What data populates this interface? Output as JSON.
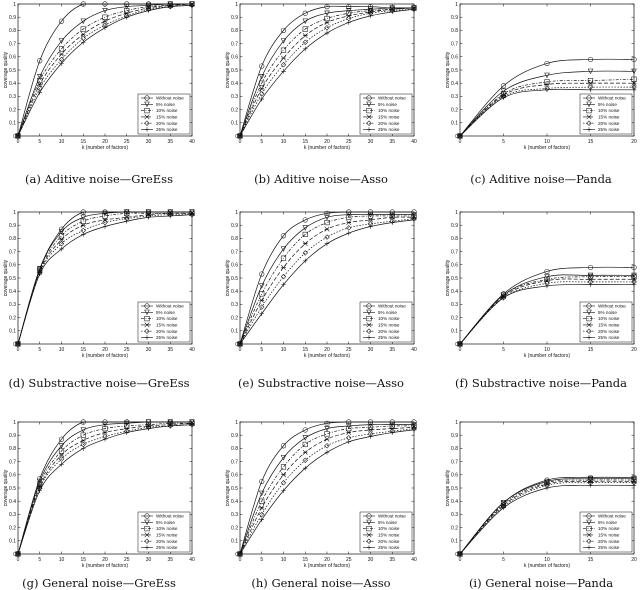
{
  "figure": {
    "legend_entries": [
      "Without noise",
      "5% noise",
      "10% noise",
      "15% noise",
      "20% noise",
      "25% noise"
    ],
    "legend_placement": "bottom-right",
    "xlabel": "k (number of factors)",
    "ylabel": "coverage quality",
    "y_ticks": [
      "0",
      "0.1",
      "0.2",
      "0.3",
      "0.4",
      "0.5",
      "0.6",
      "0.7",
      "0.8",
      "0.9",
      "1"
    ]
  },
  "chart_data": [
    {
      "type": "line",
      "caption": "(a) Aditive noise—GreEss",
      "xlabel": "k (number of factors)",
      "ylabel": "coverage quality",
      "xlim": [
        0,
        40
      ],
      "ylim": [
        0,
        1
      ],
      "x_ticks": [
        "0",
        "5",
        "10",
        "15",
        "20",
        "25",
        "30",
        "35",
        "40"
      ],
      "x": [
        0,
        5,
        10,
        15,
        20,
        25,
        30,
        35,
        40
      ],
      "series": [
        {
          "name": "Without noise",
          "values": [
            0,
            0.57,
            0.87,
            1.0,
            1.0,
            1.0,
            1.0,
            1.0,
            1.0
          ]
        },
        {
          "name": "5% noise",
          "values": [
            0,
            0.45,
            0.72,
            0.87,
            0.95,
            0.98,
            0.99,
            1.0,
            1.0
          ]
        },
        {
          "name": "10% noise",
          "values": [
            0,
            0.42,
            0.66,
            0.81,
            0.9,
            0.95,
            0.98,
            0.99,
            1.0
          ]
        },
        {
          "name": "15% noise",
          "values": [
            0,
            0.39,
            0.62,
            0.77,
            0.87,
            0.93,
            0.97,
            0.99,
            1.0
          ]
        },
        {
          "name": "20% noise",
          "values": [
            0,
            0.36,
            0.58,
            0.74,
            0.84,
            0.91,
            0.96,
            0.98,
            0.99
          ]
        },
        {
          "name": "25% noise",
          "values": [
            0,
            0.33,
            0.55,
            0.71,
            0.82,
            0.9,
            0.95,
            0.98,
            0.99
          ]
        }
      ]
    },
    {
      "type": "line",
      "caption": "(b) Aditive noise—Asso",
      "xlabel": "k (number of factors)",
      "ylabel": "coverage quality",
      "xlim": [
        0,
        40
      ],
      "ylim": [
        0,
        1
      ],
      "x_ticks": [
        "0",
        "5",
        "10",
        "15",
        "20",
        "25",
        "30",
        "35",
        "40"
      ],
      "x": [
        0,
        5,
        10,
        15,
        20,
        25,
        30,
        35,
        40
      ],
      "series": [
        {
          "name": "Without noise",
          "values": [
            0,
            0.53,
            0.8,
            0.93,
            0.98,
            0.98,
            0.98,
            0.97,
            0.97
          ]
        },
        {
          "name": "5% noise",
          "values": [
            0,
            0.45,
            0.72,
            0.87,
            0.93,
            0.95,
            0.96,
            0.97,
            0.97
          ]
        },
        {
          "name": "10% noise",
          "values": [
            0,
            0.4,
            0.65,
            0.81,
            0.89,
            0.93,
            0.95,
            0.96,
            0.97
          ]
        },
        {
          "name": "15% noise",
          "values": [
            0,
            0.36,
            0.59,
            0.76,
            0.86,
            0.91,
            0.94,
            0.96,
            0.97
          ]
        },
        {
          "name": "20% noise",
          "values": [
            0,
            0.32,
            0.54,
            0.71,
            0.82,
            0.89,
            0.93,
            0.95,
            0.96
          ]
        },
        {
          "name": "25% noise",
          "values": [
            0,
            0.28,
            0.49,
            0.66,
            0.78,
            0.86,
            0.91,
            0.94,
            0.96
          ]
        }
      ]
    },
    {
      "type": "line",
      "caption": "(c) Aditive noise—Panda",
      "xlabel": "k (number of factors)",
      "ylabel": "coverage quality",
      "xlim": [
        0,
        20
      ],
      "ylim": [
        0,
        1
      ],
      "x_ticks": [
        "0",
        "5",
        "10",
        "15",
        "20"
      ],
      "x": [
        0,
        5,
        10,
        15,
        20
      ],
      "series": [
        {
          "name": "Without noise",
          "values": [
            0,
            0.38,
            0.55,
            0.58,
            0.58
          ]
        },
        {
          "name": "5% noise",
          "values": [
            0,
            0.34,
            0.46,
            0.49,
            0.49
          ]
        },
        {
          "name": "10% noise",
          "values": [
            0,
            0.32,
            0.41,
            0.42,
            0.43
          ]
        },
        {
          "name": "15% noise",
          "values": [
            0,
            0.31,
            0.39,
            0.4,
            0.4
          ]
        },
        {
          "name": "20% noise",
          "values": [
            0,
            0.3,
            0.36,
            0.37,
            0.37
          ]
        },
        {
          "name": "25% noise",
          "values": [
            0,
            0.29,
            0.35,
            0.35,
            0.35
          ]
        }
      ]
    },
    {
      "type": "line",
      "caption": "(d) Substractive noise—GreEss",
      "xlabel": "k (number of factors)",
      "ylabel": "coverage quality",
      "xlim": [
        0,
        40
      ],
      "ylim": [
        0,
        1
      ],
      "x_ticks": [
        "0",
        "5",
        "10",
        "15",
        "20",
        "25",
        "30",
        "35",
        "40"
      ],
      "x": [
        0,
        5,
        10,
        15,
        20,
        25,
        30,
        35,
        40
      ],
      "series": [
        {
          "name": "Without noise",
          "values": [
            0,
            0.57,
            0.87,
            1.0,
            1.0,
            1.0,
            1.0,
            1.0,
            1.0
          ]
        },
        {
          "name": "5% noise",
          "values": [
            0,
            0.57,
            0.85,
            0.96,
            0.99,
            1.0,
            1.0,
            1.0,
            1.0
          ]
        },
        {
          "name": "10% noise",
          "values": [
            0,
            0.56,
            0.82,
            0.93,
            0.97,
            0.99,
            0.99,
            0.99,
            0.99
          ]
        },
        {
          "name": "15% noise",
          "values": [
            0,
            0.55,
            0.79,
            0.9,
            0.94,
            0.96,
            0.98,
            0.99,
            0.99
          ]
        },
        {
          "name": "20% noise",
          "values": [
            0,
            0.54,
            0.76,
            0.86,
            0.92,
            0.95,
            0.97,
            0.98,
            0.98
          ]
        },
        {
          "name": "25% noise",
          "values": [
            0,
            0.53,
            0.72,
            0.83,
            0.89,
            0.93,
            0.96,
            0.97,
            0.98
          ]
        }
      ]
    },
    {
      "type": "line",
      "caption": "(e) Substractive noise—Asso",
      "xlabel": "k (number of factors)",
      "ylabel": "coverage quality",
      "xlim": [
        0,
        40
      ],
      "ylim": [
        0,
        1
      ],
      "x_ticks": [
        "0",
        "5",
        "10",
        "15",
        "20",
        "25",
        "30",
        "35",
        "40"
      ],
      "x": [
        0,
        5,
        10,
        15,
        20,
        25,
        30,
        35,
        40
      ],
      "series": [
        {
          "name": "Without noise",
          "values": [
            0,
            0.53,
            0.82,
            0.94,
            0.99,
            1.0,
            1.0,
            1.0,
            1.0
          ]
        },
        {
          "name": "5% noise",
          "values": [
            0,
            0.44,
            0.72,
            0.88,
            0.96,
            0.98,
            0.98,
            0.98,
            0.98
          ]
        },
        {
          "name": "10% noise",
          "values": [
            0,
            0.38,
            0.65,
            0.83,
            0.92,
            0.96,
            0.97,
            0.97,
            0.97
          ]
        },
        {
          "name": "15% noise",
          "values": [
            0,
            0.33,
            0.58,
            0.76,
            0.87,
            0.92,
            0.94,
            0.96,
            0.96
          ]
        },
        {
          "name": "20% noise",
          "values": [
            0,
            0.28,
            0.51,
            0.69,
            0.81,
            0.88,
            0.91,
            0.93,
            0.95
          ]
        },
        {
          "name": "25% noise",
          "values": [
            0,
            0.23,
            0.45,
            0.63,
            0.76,
            0.84,
            0.89,
            0.92,
            0.94
          ]
        }
      ]
    },
    {
      "type": "line",
      "caption": "(f) Substractive noise—Panda",
      "xlabel": "k (number of factors)",
      "ylabel": "coverage quality",
      "xlim": [
        0,
        20
      ],
      "ylim": [
        0,
        1
      ],
      "x_ticks": [
        "0",
        "5",
        "10",
        "15",
        "20"
      ],
      "x": [
        0,
        5,
        10,
        15,
        20
      ],
      "series": [
        {
          "name": "Without noise",
          "values": [
            0,
            0.38,
            0.55,
            0.58,
            0.58
          ]
        },
        {
          "name": "5% noise",
          "values": [
            0,
            0.37,
            0.51,
            0.52,
            0.52
          ]
        },
        {
          "name": "10% noise",
          "values": [
            0,
            0.37,
            0.49,
            0.51,
            0.51
          ]
        },
        {
          "name": "15% noise",
          "values": [
            0,
            0.36,
            0.48,
            0.49,
            0.49
          ]
        },
        {
          "name": "20% noise",
          "values": [
            0,
            0.35,
            0.46,
            0.47,
            0.47
          ]
        },
        {
          "name": "25% noise",
          "values": [
            0,
            0.35,
            0.44,
            0.45,
            0.45
          ]
        }
      ]
    },
    {
      "type": "line",
      "caption": "(g) General noise—GreEss",
      "xlabel": "k (number of factors)",
      "ylabel": "coverage quality",
      "xlim": [
        0,
        40
      ],
      "ylim": [
        0,
        1
      ],
      "x_ticks": [
        "0",
        "5",
        "10",
        "15",
        "20",
        "25",
        "30",
        "35",
        "40"
      ],
      "x": [
        0,
        5,
        10,
        15,
        20,
        25,
        30,
        35,
        40
      ],
      "series": [
        {
          "name": "Without noise",
          "values": [
            0,
            0.57,
            0.87,
            1.0,
            1.0,
            1.0,
            1.0,
            1.0,
            1.0
          ]
        },
        {
          "name": "5% noise",
          "values": [
            0,
            0.55,
            0.82,
            0.94,
            0.98,
            0.99,
            1.0,
            1.0,
            1.0
          ]
        },
        {
          "name": "10% noise",
          "values": [
            0,
            0.53,
            0.78,
            0.9,
            0.95,
            0.97,
            0.98,
            0.99,
            0.99
          ]
        },
        {
          "name": "15% noise",
          "values": [
            0,
            0.51,
            0.75,
            0.86,
            0.92,
            0.95,
            0.97,
            0.98,
            0.99
          ]
        },
        {
          "name": "20% noise",
          "values": [
            0,
            0.5,
            0.72,
            0.83,
            0.89,
            0.93,
            0.96,
            0.97,
            0.98
          ]
        },
        {
          "name": "25% noise",
          "values": [
            0,
            0.48,
            0.68,
            0.8,
            0.87,
            0.92,
            0.95,
            0.97,
            0.98
          ]
        }
      ]
    },
    {
      "type": "line",
      "caption": "(h) General noise—Asso",
      "xlabel": "k (number of factors)",
      "ylabel": "coverage quality",
      "xlim": [
        0,
        40
      ],
      "ylim": [
        0,
        1
      ],
      "x_ticks": [
        "0",
        "5",
        "10",
        "15",
        "20",
        "25",
        "30",
        "35",
        "40"
      ],
      "x": [
        0,
        5,
        10,
        15,
        20,
        25,
        30,
        35,
        40
      ],
      "series": [
        {
          "name": "Without noise",
          "values": [
            0,
            0.55,
            0.82,
            0.94,
            0.99,
            1.0,
            1.0,
            1.0,
            1.0
          ]
        },
        {
          "name": "5% noise",
          "values": [
            0,
            0.46,
            0.73,
            0.88,
            0.95,
            0.97,
            0.98,
            0.98,
            0.98
          ]
        },
        {
          "name": "10% noise",
          "values": [
            0,
            0.4,
            0.66,
            0.83,
            0.91,
            0.95,
            0.96,
            0.97,
            0.97
          ]
        },
        {
          "name": "15% noise",
          "values": [
            0,
            0.35,
            0.6,
            0.77,
            0.87,
            0.92,
            0.94,
            0.95,
            0.96
          ]
        },
        {
          "name": "20% noise",
          "values": [
            0,
            0.3,
            0.54,
            0.71,
            0.82,
            0.88,
            0.91,
            0.93,
            0.95
          ]
        },
        {
          "name": "25% noise",
          "values": [
            0,
            0.26,
            0.48,
            0.65,
            0.77,
            0.85,
            0.89,
            0.92,
            0.94
          ]
        }
      ]
    },
    {
      "type": "line",
      "caption": "(i) General noise—Panda",
      "xlabel": "k (number of factors)",
      "ylabel": "coverage quality",
      "xlim": [
        0,
        20
      ],
      "ylim": [
        0,
        1
      ],
      "x_ticks": [
        "0",
        "5",
        "10",
        "15",
        "20"
      ],
      "x": [
        0,
        5,
        10,
        15,
        20
      ],
      "series": [
        {
          "name": "Without noise",
          "values": [
            0,
            0.39,
            0.56,
            0.58,
            0.58
          ]
        },
        {
          "name": "5% noise",
          "values": [
            0,
            0.39,
            0.55,
            0.57,
            0.57
          ]
        },
        {
          "name": "10% noise",
          "values": [
            0,
            0.38,
            0.54,
            0.56,
            0.56
          ]
        },
        {
          "name": "15% noise",
          "values": [
            0,
            0.37,
            0.53,
            0.55,
            0.55
          ]
        },
        {
          "name": "20% noise",
          "values": [
            0,
            0.36,
            0.52,
            0.54,
            0.54
          ]
        },
        {
          "name": "25% noise",
          "values": [
            0,
            0.35,
            0.5,
            0.52,
            0.52
          ]
        }
      ]
    }
  ]
}
